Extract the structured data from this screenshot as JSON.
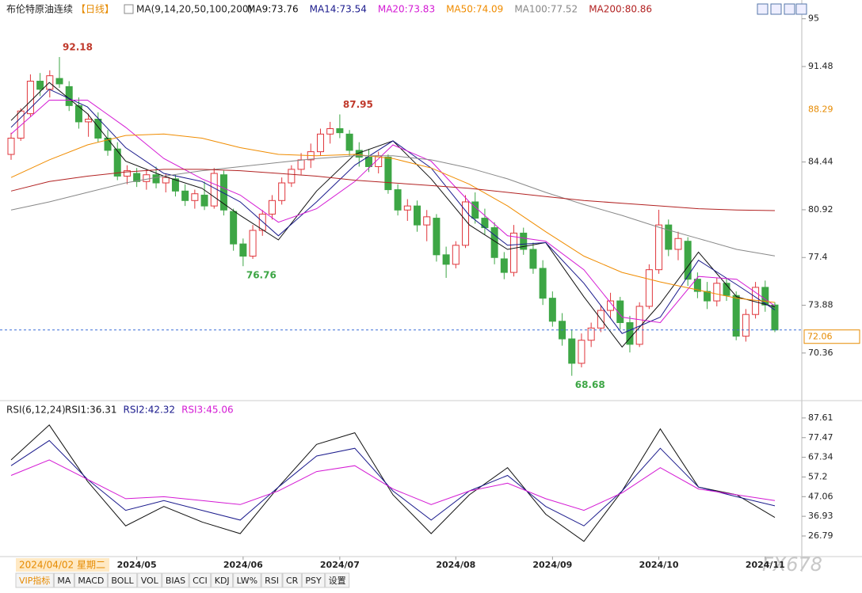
{
  "chart_data": {
    "type": "candlestick",
    "title": "布伦特原油连续",
    "period": "【日线】",
    "ma_label": "MA(9,14,20,50,100,200)",
    "cursor_date": "2024/04/02 星期二",
    "up_color": "#e0363c",
    "down_color": "#3da645",
    "ylim": [
      67.2,
      95.1
    ],
    "yticks": [
      95.0,
      91.48,
      84.44,
      80.92,
      77.4,
      73.88,
      70.36
    ],
    "xticks": [
      {
        "value": 13,
        "label": "2024/05"
      },
      {
        "value": 24,
        "label": "2024/06"
      },
      {
        "value": 34,
        "label": "2024/07"
      },
      {
        "value": 46,
        "label": "2024/08"
      },
      {
        "value": 56,
        "label": "2024/09"
      },
      {
        "value": 67,
        "label": "2024/10"
      },
      {
        "value": 78,
        "label": "2024/11"
      }
    ],
    "marker_price": {
      "value": 88.29,
      "color": "#e68a00"
    },
    "candles": [
      [
        85.0,
        86.6,
        84.6,
        86.2
      ],
      [
        86.2,
        88.4,
        86.0,
        88.2
      ],
      [
        88.0,
        90.9,
        87.8,
        90.4
      ],
      [
        90.4,
        91.0,
        89.3,
        89.8
      ],
      [
        89.8,
        91.2,
        89.2,
        90.8
      ],
      [
        90.6,
        92.18,
        89.9,
        90.2
      ],
      [
        90.0,
        90.4,
        88.2,
        88.6
      ],
      [
        88.6,
        89.2,
        86.9,
        87.4
      ],
      [
        87.4,
        88.0,
        86.3,
        87.6
      ],
      [
        87.6,
        88.1,
        85.9,
        86.2
      ],
      [
        86.2,
        86.8,
        84.9,
        85.3
      ],
      [
        85.4,
        85.9,
        83.1,
        83.4
      ],
      [
        83.4,
        84.2,
        82.8,
        83.8
      ],
      [
        83.6,
        84.0,
        82.6,
        83.0
      ],
      [
        83.0,
        83.9,
        82.4,
        83.5
      ],
      [
        83.5,
        84.1,
        82.5,
        82.9
      ],
      [
        82.9,
        83.6,
        82.2,
        83.3
      ],
      [
        83.2,
        83.5,
        81.9,
        82.3
      ],
      [
        82.3,
        82.8,
        81.2,
        81.6
      ],
      [
        81.6,
        82.4,
        81.0,
        82.1
      ],
      [
        82.0,
        83.0,
        80.9,
        81.2
      ],
      [
        81.2,
        84.0,
        81.0,
        83.6
      ],
      [
        83.5,
        83.8,
        80.5,
        80.9
      ],
      [
        80.8,
        81.0,
        77.9,
        78.4
      ],
      [
        78.4,
        78.8,
        76.76,
        77.5
      ],
      [
        77.5,
        79.8,
        77.3,
        79.4
      ],
      [
        79.4,
        80.9,
        79.0,
        80.6
      ],
      [
        80.6,
        82.0,
        80.2,
        81.6
      ],
      [
        81.6,
        83.3,
        81.3,
        82.9
      ],
      [
        82.9,
        84.2,
        82.6,
        83.9
      ],
      [
        83.9,
        85.1,
        83.5,
        84.6
      ],
      [
        84.6,
        85.8,
        84.0,
        85.2
      ],
      [
        85.2,
        86.9,
        84.9,
        86.5
      ],
      [
        86.5,
        87.4,
        85.8,
        86.9
      ],
      [
        86.9,
        87.95,
        86.2,
        86.6
      ],
      [
        86.5,
        86.8,
        84.9,
        85.3
      ],
      [
        85.3,
        85.9,
        84.1,
        84.8
      ],
      [
        84.8,
        85.4,
        83.7,
        84.1
      ],
      [
        84.1,
        85.2,
        83.6,
        84.9
      ],
      [
        84.8,
        85.0,
        82.1,
        82.4
      ],
      [
        82.4,
        82.8,
        80.5,
        80.9
      ],
      [
        80.9,
        81.7,
        80.1,
        81.2
      ],
      [
        81.2,
        81.6,
        79.3,
        79.8
      ],
      [
        79.8,
        80.9,
        78.6,
        80.4
      ],
      [
        80.3,
        80.6,
        77.1,
        77.6
      ],
      [
        77.6,
        78.2,
        75.9,
        76.9
      ],
      [
        76.9,
        78.6,
        76.6,
        78.3
      ],
      [
        78.3,
        82.0,
        78.1,
        81.5
      ],
      [
        81.5,
        82.2,
        79.9,
        80.3
      ],
      [
        80.3,
        81.0,
        79.1,
        79.6
      ],
      [
        79.6,
        80.0,
        76.9,
        77.4
      ],
      [
        77.3,
        77.8,
        75.8,
        76.3
      ],
      [
        76.3,
        79.8,
        76.0,
        79.2
      ],
      [
        79.2,
        79.6,
        77.6,
        78.0
      ],
      [
        78.0,
        78.5,
        76.2,
        76.6
      ],
      [
        76.6,
        77.2,
        73.9,
        74.4
      ],
      [
        74.4,
        74.9,
        72.3,
        72.7
      ],
      [
        72.7,
        73.3,
        70.9,
        71.4
      ],
      [
        71.4,
        72.1,
        68.68,
        69.6
      ],
      [
        69.6,
        71.8,
        69.3,
        71.3
      ],
      [
        71.3,
        72.6,
        70.8,
        72.2
      ],
      [
        72.2,
        73.9,
        71.9,
        73.5
      ],
      [
        73.5,
        74.8,
        72.9,
        74.2
      ],
      [
        74.2,
        74.5,
        72.1,
        72.6
      ],
      [
        72.6,
        73.1,
        70.4,
        71.0
      ],
      [
        71.0,
        74.1,
        70.8,
        73.8
      ],
      [
        73.8,
        76.9,
        73.6,
        76.5
      ],
      [
        76.5,
        80.92,
        76.2,
        79.8
      ],
      [
        79.8,
        80.2,
        77.5,
        78.0
      ],
      [
        78.0,
        79.3,
        77.2,
        78.8
      ],
      [
        78.6,
        78.9,
        75.3,
        75.8
      ],
      [
        75.8,
        76.3,
        74.4,
        74.9
      ],
      [
        74.9,
        75.6,
        73.6,
        74.2
      ],
      [
        74.2,
        75.9,
        73.8,
        75.5
      ],
      [
        75.5,
        75.9,
        74.2,
        74.6
      ],
      [
        74.6,
        74.9,
        71.3,
        71.6
      ],
      [
        71.6,
        73.6,
        71.2,
        73.2
      ],
      [
        73.2,
        75.6,
        72.9,
        75.2
      ],
      [
        75.2,
        75.7,
        73.4,
        73.9
      ],
      [
        73.9,
        74.1,
        71.9,
        72.06
      ]
    ],
    "series": [
      {
        "name": "MA9:",
        "color": "#111111",
        "values": [
          87.5,
          90.3,
          88.0,
          84.5,
          83.4,
          82.5,
          80.5,
          78.7,
          82.3,
          85.0,
          86.0,
          83.2,
          79.8,
          78.0,
          78.5,
          74.5,
          70.8,
          74.0,
          77.8,
          74.5,
          73.76
        ]
      },
      {
        "name": "MA14:",
        "color": "#1a1a8c",
        "values": [
          87.0,
          89.8,
          88.5,
          85.5,
          83.6,
          83.0,
          81.5,
          79.0,
          81.5,
          84.2,
          86.0,
          84.0,
          80.5,
          78.3,
          78.5,
          75.5,
          71.8,
          73.0,
          77.2,
          75.4,
          73.54
        ]
      },
      {
        "name": "MA20:",
        "color": "#d41ad4",
        "values": [
          86.5,
          89.0,
          89.0,
          87.0,
          84.7,
          83.2,
          82.0,
          80.0,
          81.0,
          83.0,
          85.7,
          84.5,
          81.5,
          79.0,
          78.6,
          76.5,
          73.0,
          72.6,
          76.0,
          75.8,
          73.83
        ]
      },
      {
        "name": "MA50:",
        "color": "#f08c00",
        "values": [
          83.3,
          84.6,
          85.7,
          86.4,
          86.5,
          86.2,
          85.5,
          85.0,
          84.9,
          85.0,
          84.7,
          84.0,
          82.8,
          81.2,
          79.3,
          77.5,
          76.3,
          75.6,
          75.0,
          74.4,
          74.09
        ]
      },
      {
        "name": "MA100:",
        "color": "#888888",
        "values": [
          80.9,
          81.5,
          82.2,
          82.9,
          83.4,
          83.8,
          84.1,
          84.4,
          84.7,
          84.9,
          84.9,
          84.6,
          84.0,
          83.2,
          82.2,
          81.3,
          80.5,
          79.6,
          78.8,
          78.0,
          77.52
        ]
      },
      {
        "name": "MA200:",
        "color": "#b22222",
        "values": [
          82.3,
          83.0,
          83.4,
          83.7,
          83.9,
          83.9,
          83.8,
          83.6,
          83.4,
          83.1,
          82.9,
          82.7,
          82.5,
          82.2,
          81.9,
          81.6,
          81.4,
          81.2,
          81.0,
          80.9,
          80.86
        ]
      }
    ],
    "rsi": {
      "label": "RSI(6,12,24)",
      "ylim": [
        17.4,
        94.1
      ],
      "yticks": [
        87.61,
        77.47,
        67.34,
        57.2,
        47.06,
        36.93,
        26.79
      ],
      "series": [
        {
          "name": "RSI1:",
          "color": "#111111",
          "values": [
            66,
            84,
            55,
            32,
            42,
            34,
            28,
            52,
            74,
            80,
            48,
            28,
            48,
            62,
            38,
            24,
            50,
            82,
            52,
            48,
            36.31
          ]
        },
        {
          "name": "RSI2:",
          "color": "#1a1a8c",
          "values": [
            63,
            76,
            56,
            40,
            45,
            40,
            35,
            52,
            68,
            72,
            50,
            35,
            50,
            58,
            42,
            32,
            50,
            72,
            52,
            47,
            42.32
          ]
        },
        {
          "name": "RSI3:",
          "color": "#d41ad4",
          "values": [
            58,
            66,
            56,
            46,
            47,
            45,
            43,
            50,
            60,
            63,
            51,
            43,
            50,
            54,
            46,
            40,
            49,
            62,
            51,
            48,
            45.06
          ]
        }
      ]
    },
    "toolbar": [
      "VIP指标",
      "MA",
      "MACD",
      "BOLL",
      "VOL",
      "BIAS",
      "CCI",
      "KDJ",
      "LW%",
      "RSI",
      "CR",
      "PSY",
      "设置"
    ],
    "watermark": "FX678"
  }
}
